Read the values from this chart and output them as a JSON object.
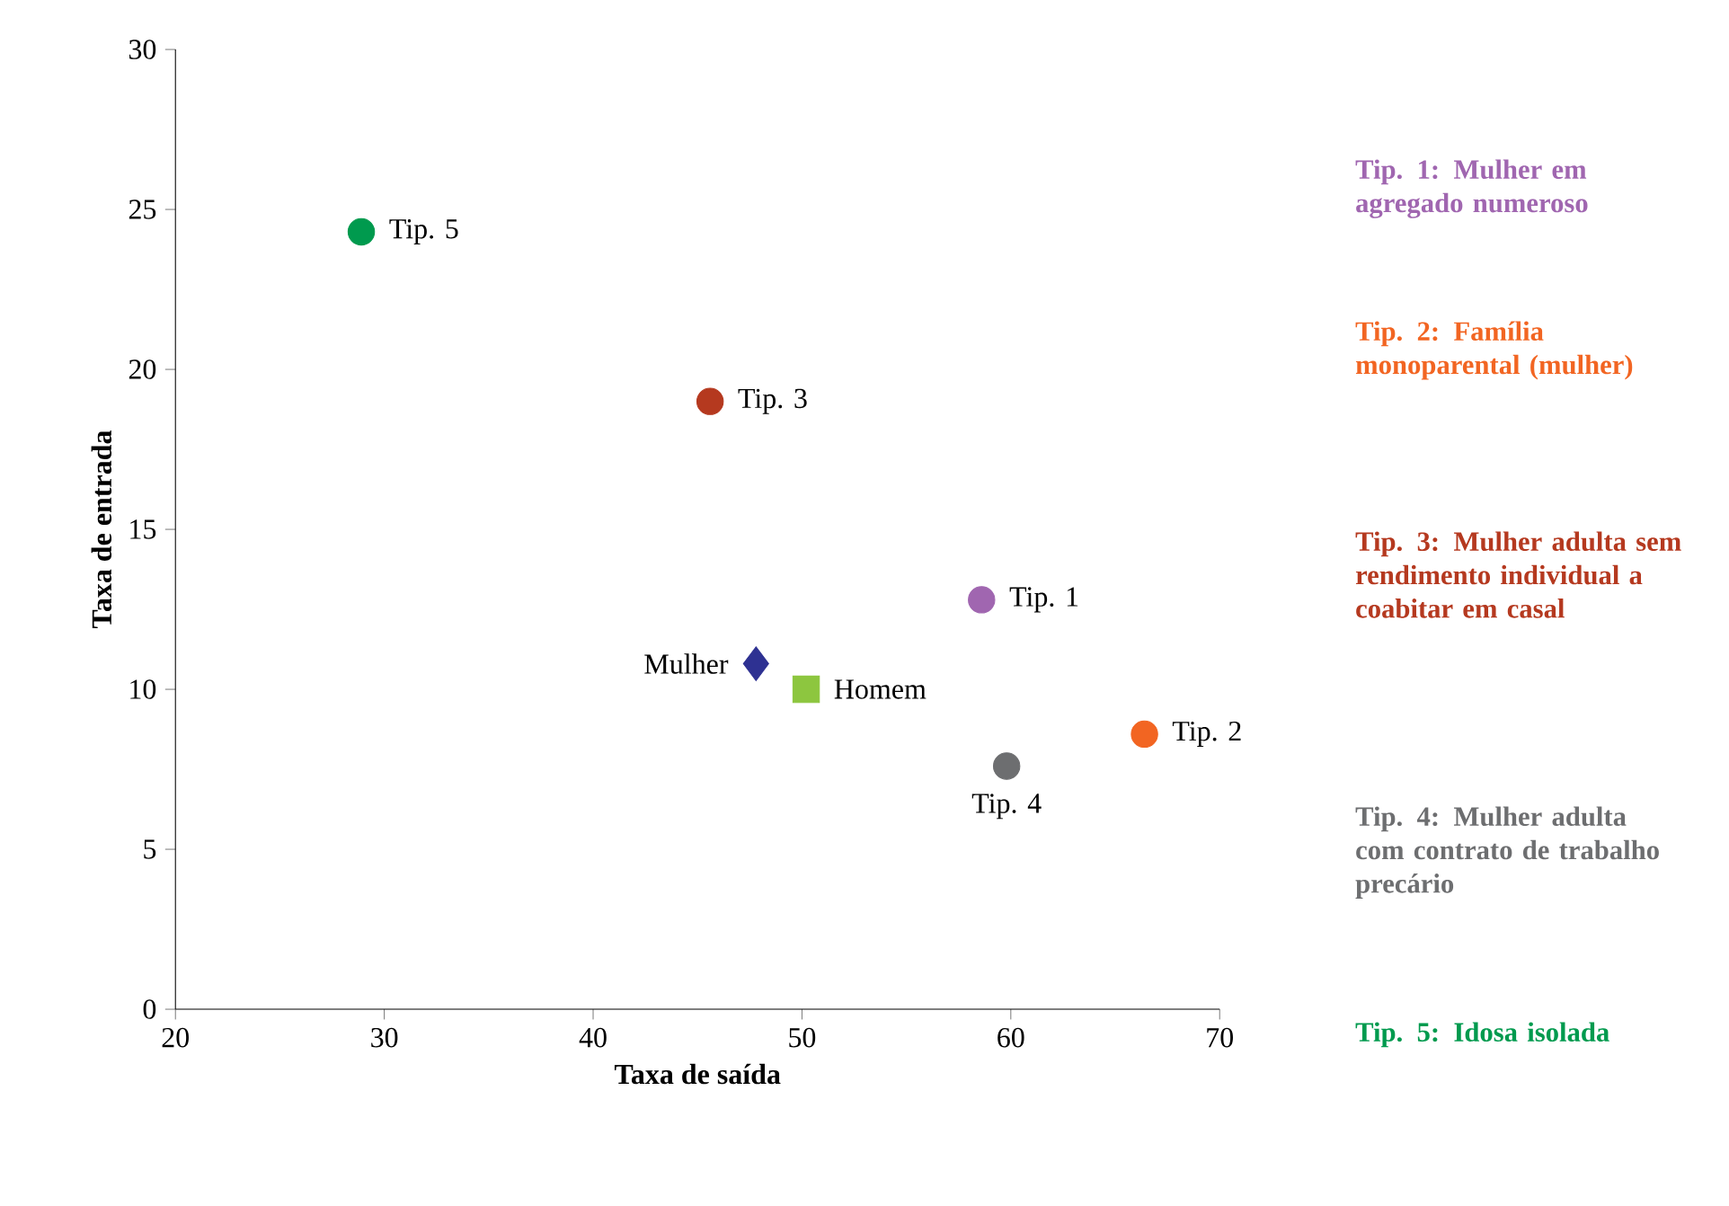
{
  "chart_data": {
    "type": "scatter",
    "xlabel": "Taxa de saída",
    "ylabel": "Taxa de entrada",
    "xlim": [
      20,
      70
    ],
    "ylim": [
      0,
      30
    ],
    "xticks": [
      20,
      30,
      40,
      50,
      60,
      70
    ],
    "yticks": [
      0,
      5,
      10,
      15,
      20,
      25,
      30
    ],
    "grid": false,
    "series": [
      {
        "name": "Tip. 1",
        "color": "#a066b0",
        "marker": "circle",
        "x": [
          58.6
        ],
        "values": [
          12.8
        ]
      },
      {
        "name": "Tip. 2",
        "color": "#f26522",
        "marker": "circle",
        "x": [
          66.4
        ],
        "values": [
          8.6
        ]
      },
      {
        "name": "Tip. 3",
        "color": "#b5391f",
        "marker": "circle",
        "x": [
          45.6
        ],
        "values": [
          19.0
        ]
      },
      {
        "name": "Tip. 4",
        "color": "#6d6e70",
        "marker": "circle",
        "x": [
          59.8
        ],
        "values": [
          7.6
        ]
      },
      {
        "name": "Tip. 5",
        "color": "#009a4e",
        "marker": "circle",
        "x": [
          28.9
        ],
        "values": [
          24.3
        ]
      },
      {
        "name": "Mulher",
        "color": "#2e3192",
        "marker": "diamond",
        "x": [
          47.8
        ],
        "values": [
          10.8
        ]
      },
      {
        "name": "Homem",
        "color": "#8dc63f",
        "marker": "square",
        "x": [
          50.2
        ],
        "values": [
          10.0
        ]
      }
    ],
    "annotations": [
      "**Tip. 1: Mulher em agregado numeroso**",
      "**Tip. 2: Família monoparental (mulher)**",
      "**Tip. 3: Mulher adulta sem rendimento individual a coabitar em casal**",
      "**Tip. 4: Mulher adulta com contrato de trabalho precário**",
      "**Tip. 5: Idosa isolada**"
    ]
  }
}
